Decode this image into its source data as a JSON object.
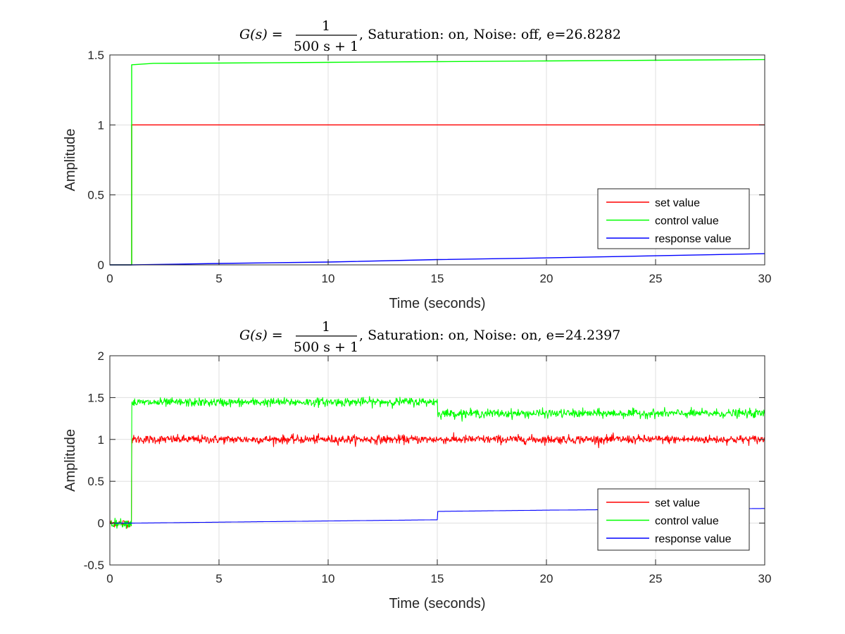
{
  "chart_data": [
    {
      "type": "line",
      "title_parts": {
        "func": "G(s) =",
        "numerator": "1",
        "denominator": "500 s + 1",
        "suffix": ", Saturation: on, Noise: off, e=26.8282"
      },
      "xlabel": "Time (seconds)",
      "ylabel": "Amplitude",
      "xlim": [
        0,
        30
      ],
      "ylim": [
        0,
        1.5
      ],
      "xticks": [
        "0",
        "5",
        "10",
        "15",
        "20",
        "25",
        "30"
      ],
      "xtick_values": [
        0,
        5,
        10,
        15,
        20,
        25,
        30
      ],
      "yticks": [
        "0",
        "0.5",
        "1",
        "1.5"
      ],
      "ytick_values": [
        0,
        0.5,
        1,
        1.5
      ],
      "grid": true,
      "noise": 0,
      "legend_position": "lower-right",
      "series": [
        {
          "name": "set value",
          "color": "#ff0000",
          "x": [
            0,
            1,
            1,
            30
          ],
          "y": [
            0,
            0,
            1,
            1
          ]
        },
        {
          "name": "control value",
          "color": "#00ff00",
          "x": [
            0,
            1,
            1,
            2,
            5,
            10,
            15,
            20,
            25,
            30
          ],
          "y": [
            0,
            0,
            1.43,
            1.44,
            1.442,
            1.447,
            1.452,
            1.457,
            1.462,
            1.467
          ]
        },
        {
          "name": "response value",
          "color": "#0000ff",
          "x": [
            0,
            1,
            5,
            10,
            15,
            20,
            25,
            30
          ],
          "y": [
            0,
            0,
            0.01,
            0.02,
            0.038,
            0.05,
            0.065,
            0.08
          ]
        }
      ]
    },
    {
      "type": "line",
      "title_parts": {
        "func": "G(s) =",
        "numerator": "1",
        "denominator": "500 s + 1",
        "suffix": ", Saturation: on, Noise: on, e=24.2397"
      },
      "xlabel": "Time (seconds)",
      "ylabel": "Amplitude",
      "xlim": [
        0,
        30
      ],
      "ylim": [
        -0.5,
        2
      ],
      "xticks": [
        "0",
        "5",
        "10",
        "15",
        "20",
        "25",
        "30"
      ],
      "xtick_values": [
        0,
        5,
        10,
        15,
        20,
        25,
        30
      ],
      "yticks": [
        "-0.5",
        "0",
        "0.5",
        "1",
        "1.5",
        "2"
      ],
      "ytick_values": [
        -0.5,
        0,
        0.5,
        1,
        1.5,
        2
      ],
      "grid": true,
      "noise": 0.025,
      "legend_position": "lower-right",
      "series": [
        {
          "name": "set value",
          "color": "#ff0000",
          "x": [
            0,
            1,
            1,
            30
          ],
          "y": [
            0,
            0,
            1,
            1
          ],
          "noisy_from": 1
        },
        {
          "name": "control value",
          "color": "#00ff00",
          "x": [
            0,
            1,
            1,
            15,
            15,
            30
          ],
          "y": [
            0,
            0,
            1.44,
            1.45,
            1.31,
            1.31
          ],
          "noisy": true
        },
        {
          "name": "response value",
          "color": "#0000ff",
          "x": [
            0,
            1,
            15,
            15,
            20,
            25,
            30
          ],
          "y": [
            0,
            0,
            0.04,
            0.14,
            0.155,
            0.165,
            0.175
          ]
        }
      ]
    }
  ]
}
